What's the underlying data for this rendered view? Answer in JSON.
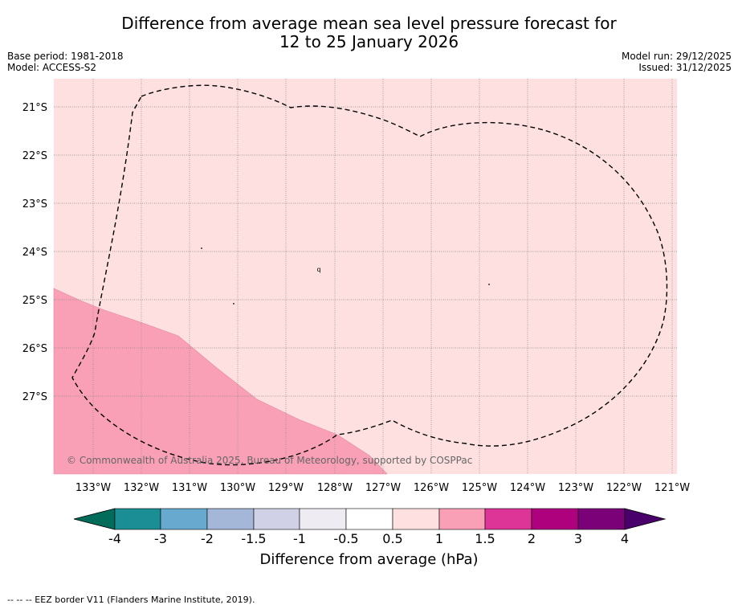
{
  "title_line1": "Difference from average mean sea level pressure forecast for",
  "title_line2": "12 to 25 January 2026",
  "base_period": "Base period: 1981-2018",
  "model": "Model: ACCESS-S2",
  "model_run": "Model run: 29/12/2025",
  "issued": "Issued: 31/12/2025",
  "copyright": "© Commonwealth of Australia 2025, Bureau of Meteorology, supported by COSPPac",
  "map": {
    "lon_labels": [
      "133°W",
      "132°W",
      "131°W",
      "130°W",
      "129°W",
      "128°W",
      "127°W",
      "126°W",
      "125°W",
      "124°W",
      "123°W",
      "122°W",
      "121°W"
    ],
    "lat_labels": [
      "21°S",
      "22°S",
      "23°S",
      "24°S",
      "25°S",
      "26°S",
      "27°S"
    ],
    "background_color": "#fde0df",
    "shaded_region_color": "#f9a0b6",
    "island_marker": "q"
  },
  "colorbar": {
    "label": "Difference from average (hPa)",
    "ticks": [
      "-4",
      "-3",
      "-2",
      "-1.5",
      "-1",
      "-0.5",
      "0.5",
      "1",
      "1.5",
      "2",
      "3",
      "4"
    ],
    "colors": [
      "#1a8e94",
      "#67a9cf",
      "#a5b7d9",
      "#d0d1e6",
      "#efebf2",
      "#ffffff",
      "#fde0df",
      "#f9a0b6",
      "#dd3497",
      "#ae017e",
      "#7a0177"
    ],
    "extend_low_color": "#016c59",
    "extend_high_color": "#49006a"
  },
  "footnote": "--  --  -- EEZ border V11 (Flanders Marine Institute, 2019)."
}
